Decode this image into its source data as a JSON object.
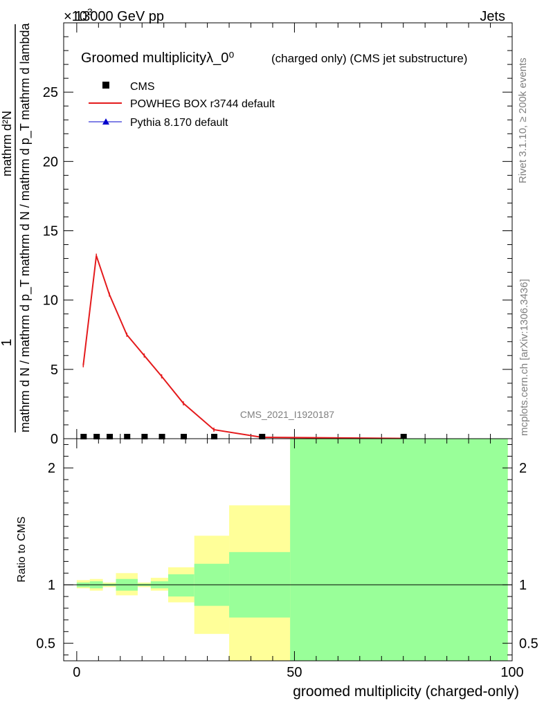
{
  "header": {
    "energy_label": "13000 GeV pp",
    "process_label": "Jets",
    "exponent_label": "×10",
    "exponent_power": "3"
  },
  "side_labels": {
    "rivet": "Rivet 3.1.10, ≥ 200k events",
    "mcplots": "mcplots.cern.ch [arXiv:1306.3436]"
  },
  "chart_data": [
    {
      "type": "line",
      "title": "Groomed multiplicityλ_0⁰",
      "subtitle": "(charged only) (CMS jet substructure)",
      "watermark": "CMS_2021_I1920187",
      "ylabel_numerator": "1",
      "ylabel_denominator": "mathrm d N / mathrm d p_T mathrm d N / mathrm d p_T mathrm d lambda",
      "ylabel_top": "mathrm d²N",
      "xlim": [
        -3,
        100
      ],
      "ylim": [
        0,
        30
      ],
      "yticks": [
        0,
        5,
        10,
        15,
        20,
        25
      ],
      "legend": {
        "position": "top-left",
        "entries": [
          {
            "label": "CMS",
            "marker": "square",
            "color": "#000000"
          },
          {
            "label": "POWHEG BOX r3744 default",
            "marker": "line",
            "color": "#e41a1c"
          },
          {
            "label": "Pythia 8.170 default",
            "marker": "triangle",
            "color": "#0000cc"
          }
        ]
      },
      "series": [
        {
          "name": "CMS",
          "color": "#000000",
          "x": [
            1.5,
            4.5,
            7.5,
            11.5,
            15.5,
            19.5,
            24.5,
            31.5,
            42.5,
            75
          ],
          "y": [
            0.05,
            0.05,
            0.05,
            0.05,
            0.05,
            0.05,
            0.05,
            0.05,
            0.05,
            0.05
          ]
        },
        {
          "name": "POWHEG BOX r3744 default",
          "color": "#e41a1c",
          "x": [
            1.5,
            4.5,
            7.5,
            11.5,
            15.5,
            19.5,
            24.5,
            31.5,
            42.5,
            75
          ],
          "y": [
            5.3,
            13.2,
            10.4,
            7.5,
            6.0,
            4.5,
            2.55,
            0.65,
            0.1,
            0.02
          ]
        }
      ]
    },
    {
      "type": "area",
      "ylabel": "Ratio to CMS",
      "xlabel": "groomed multiplicity (charged-only)",
      "xlim": [
        -3,
        100
      ],
      "ylim": [
        0.35,
        2.25
      ],
      "xticks": [
        0,
        50,
        100
      ],
      "yticks": [
        0.5,
        1,
        2
      ],
      "reference_line": 1,
      "bins": [
        {
          "lo": 0,
          "hi": 3,
          "yellow": [
            0.97,
            1.04
          ],
          "green": [
            0.98,
            1.02
          ]
        },
        {
          "lo": 3,
          "hi": 6,
          "yellow": [
            0.95,
            1.05
          ],
          "green": [
            0.97,
            1.03
          ]
        },
        {
          "lo": 6,
          "hi": 9,
          "yellow": [
            0.98,
            1.02
          ],
          "green": [
            0.99,
            1.01
          ]
        },
        {
          "lo": 9,
          "hi": 14,
          "yellow": [
            0.91,
            1.1
          ],
          "green": [
            0.95,
            1.05
          ]
        },
        {
          "lo": 14,
          "hi": 17,
          "yellow": [
            0.98,
            1.02
          ],
          "green": [
            0.99,
            1.01
          ]
        },
        {
          "lo": 17,
          "hi": 21,
          "yellow": [
            0.95,
            1.06
          ],
          "green": [
            0.97,
            1.03
          ]
        },
        {
          "lo": 21,
          "hi": 27,
          "yellow": [
            0.85,
            1.15
          ],
          "green": [
            0.9,
            1.09
          ]
        },
        {
          "lo": 27,
          "hi": 35,
          "yellow": [
            0.58,
            1.42
          ],
          "green": [
            0.82,
            1.18
          ]
        },
        {
          "lo": 35,
          "hi": 49,
          "yellow": [
            0.35,
            1.68
          ],
          "green": [
            0.72,
            1.28
          ]
        },
        {
          "lo": 49,
          "hi": 99,
          "yellow": [
            0.35,
            2.25
          ],
          "green": [
            0.35,
            2.25
          ]
        }
      ]
    }
  ]
}
